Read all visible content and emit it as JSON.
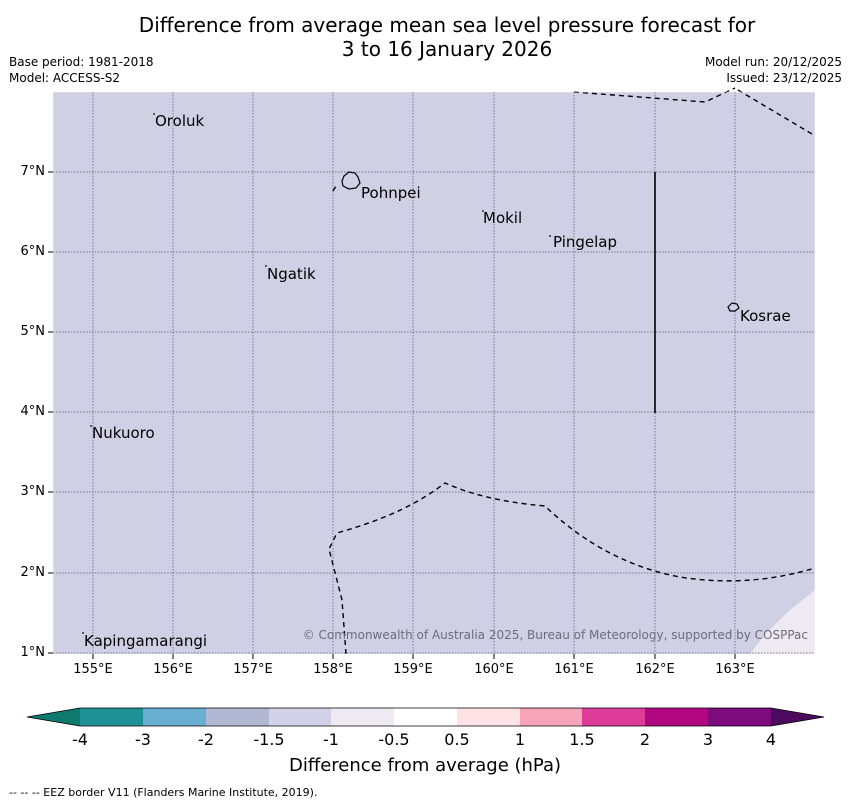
{
  "header": {
    "title_line1": "Difference from average mean sea level pressure forecast for",
    "title_line2": "3 to 16 January 2026",
    "base_period": "Base period: 1981-2018",
    "model": "Model: ACCESS-S2",
    "model_run": "Model run: 20/12/2025",
    "issued": "Issued: 23/12/2025"
  },
  "map": {
    "fill_color": "#cfd0e4",
    "positive_fill_color": "#efe9f1",
    "grid_color": "#555577",
    "latitude_labels": [
      "7°N",
      "6°N",
      "5°N",
      "4°N",
      "3°N",
      "2°N",
      "1°N"
    ],
    "longitude_labels": [
      "155°E",
      "156°E",
      "157°E",
      "158°E",
      "159°E",
      "160°E",
      "161°E",
      "162°E",
      "163°E"
    ],
    "places": [
      "Oroluk",
      "Pohnpei",
      "Mokil",
      "Pingelap",
      "Ngatik",
      "Kosrae",
      "Nukuoro",
      "Kapingamarangi"
    ],
    "copyright": "© Commonwealth of Australia 2025, Bureau of Meteorology, supported by COSPPac"
  },
  "colorbar": {
    "colors": [
      "#0e7a6e",
      "#1e9197",
      "#6aaed2",
      "#b2b7d4",
      "#d2d2e8",
      "#efeaf2",
      "#ffffff",
      "#fde3e6",
      "#f6a4ba",
      "#dc3b97",
      "#b1087f",
      "#7d0b7d",
      "#4b0a5e"
    ],
    "labels": [
      "-4",
      "-3",
      "-2",
      "-1.5",
      "-1",
      "-0.5",
      "0.5",
      "1",
      "1.5",
      "2",
      "3",
      "4"
    ],
    "title": "Difference from average (hPa)"
  },
  "footer": {
    "eez_note": "--  --  -- EEZ border V11 (Flanders Marine Institute, 2019)."
  }
}
